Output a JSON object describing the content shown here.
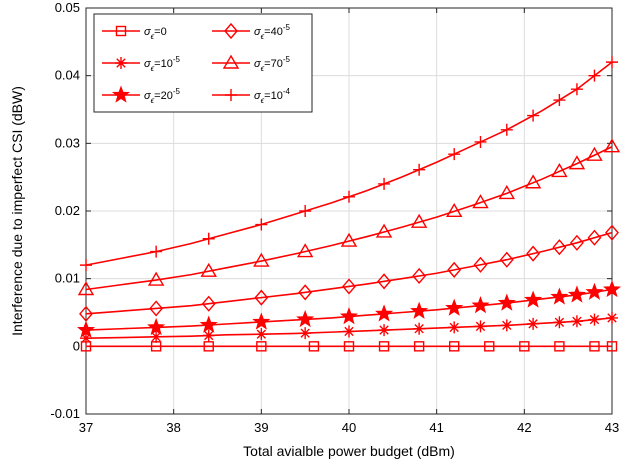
{
  "chart_data": {
    "type": "line",
    "xlabel": "Total avialble power budget (dBm)",
    "ylabel": "Interference due to imperfect CSI (dBW)",
    "xlim": [
      37,
      43
    ],
    "ylim": [
      -0.01,
      0.05
    ],
    "xticks": [
      37,
      38,
      39,
      40,
      41,
      42,
      43
    ],
    "xtick_labels": [
      "37",
      "38",
      "39",
      "40",
      "41",
      "42",
      "43"
    ],
    "yticks": [
      -0.01,
      0,
      0.01,
      0.02,
      0.03,
      0.04,
      0.05
    ],
    "ytick_labels": [
      "-0.01",
      "0",
      "0.01",
      "0.02",
      "0.03",
      "0.04",
      "0.05"
    ],
    "grid": true,
    "legend_position": "top-left",
    "line_color": "#ff0000",
    "x": [
      37,
      37.4,
      37.8,
      38.2,
      38.6,
      39,
      39.4,
      39.8,
      40.2,
      40.6,
      41,
      41.4,
      41.8,
      42.2,
      42.6,
      43
    ],
    "series": [
      {
        "name": "σ_ε=0",
        "label_base": "=0",
        "label_sup": "",
        "marker": "square",
        "marker_x": [
          37,
          37.8,
          38.4,
          39,
          39.6,
          40,
          40.4,
          40.8,
          41.2,
          41.6,
          42,
          42.4,
          42.8,
          43
        ],
        "values": [
          0,
          0,
          0,
          0,
          0,
          0,
          0,
          0,
          0,
          0,
          0,
          0,
          0,
          0,
          0,
          0
        ]
      },
      {
        "name": "σ_ε=10^-5",
        "label_base": "=10",
        "label_sup": "-5",
        "marker": "asterisk",
        "marker_x": [
          37,
          37.8,
          38.4,
          39,
          39.5,
          40,
          40.4,
          40.8,
          41.2,
          41.5,
          41.8,
          42.1,
          42.4,
          42.6,
          42.8,
          43
        ],
        "values": [
          0.0012,
          0.0013,
          0.0014,
          0.0015,
          0.0017,
          0.0018,
          0.0019,
          0.0021,
          0.0023,
          0.0025,
          0.0027,
          0.0029,
          0.0031,
          0.0034,
          0.0037,
          0.0042
        ]
      },
      {
        "name": "σ_ε=20^-5",
        "label_base": "=20",
        "label_sup": "-5",
        "marker": "star",
        "marker_x": [
          37,
          37.8,
          38.4,
          39,
          39.5,
          40,
          40.4,
          40.8,
          41.2,
          41.5,
          41.8,
          42.1,
          42.4,
          42.6,
          42.8,
          43
        ],
        "values": [
          0.0024,
          0.0026,
          0.0028,
          0.003,
          0.0033,
          0.0036,
          0.0039,
          0.0042,
          0.0046,
          0.005,
          0.0054,
          0.0059,
          0.0064,
          0.007,
          0.0076,
          0.0084
        ]
      },
      {
        "name": "σ_ε=40^-5",
        "label_base": "=40",
        "label_sup": "-5",
        "marker": "diamond",
        "marker_x": [
          37,
          37.8,
          38.4,
          39,
          39.5,
          40,
          40.4,
          40.8,
          41.2,
          41.5,
          41.8,
          42.1,
          42.4,
          42.6,
          42.8,
          43
        ],
        "values": [
          0.0048,
          0.0052,
          0.0056,
          0.006,
          0.0066,
          0.0072,
          0.0078,
          0.0085,
          0.0092,
          0.01,
          0.0108,
          0.0118,
          0.0128,
          0.014,
          0.0153,
          0.0168
        ]
      },
      {
        "name": "σ_ε=70^-5",
        "label_base": "=70",
        "label_sup": "-5",
        "marker": "triangle",
        "marker_x": [
          37,
          37.8,
          38.4,
          39,
          39.5,
          40,
          40.4,
          40.8,
          41.2,
          41.5,
          41.8,
          42.1,
          42.4,
          42.6,
          42.8,
          43
        ],
        "values": [
          0.0084,
          0.0091,
          0.0098,
          0.0106,
          0.0116,
          0.0126,
          0.0137,
          0.0149,
          0.0162,
          0.0176,
          0.0191,
          0.0208,
          0.0226,
          0.0247,
          0.027,
          0.0295
        ]
      },
      {
        "name": "σ_ε=10^-4",
        "label_base": "=10",
        "label_sup": "-4",
        "marker": "plus",
        "marker_x": [
          37,
          37.8,
          38.4,
          39,
          39.5,
          40,
          40.4,
          40.8,
          41.2,
          41.5,
          41.8,
          42.1,
          42.4,
          42.6,
          42.8,
          43
        ],
        "values": [
          0.012,
          0.013,
          0.014,
          0.0152,
          0.0166,
          0.018,
          0.0196,
          0.0212,
          0.023,
          0.025,
          0.0272,
          0.0296,
          0.032,
          0.0348,
          0.038,
          0.042
        ]
      }
    ]
  }
}
